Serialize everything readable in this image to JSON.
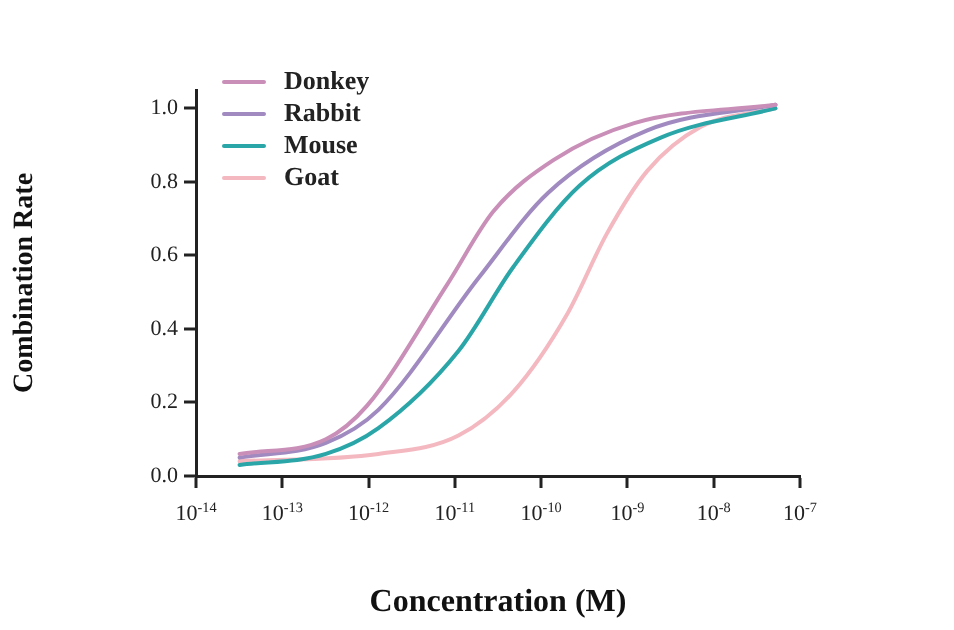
{
  "chart_data": {
    "type": "line",
    "xlabel": "Concentration (M)",
    "ylabel": "Combination Rate",
    "log": "x",
    "xlim": [
      1e-14,
      1e-07
    ],
    "xticks": [
      {
        "value": 1e-14,
        "label": "10$^{-14}$"
      },
      {
        "value": 1e-13,
        "label": "10$^{-13}$"
      },
      {
        "value": 1e-12,
        "label": "10$^{-12}$"
      },
      {
        "value": 1e-11,
        "label": "10$^{-11}$"
      },
      {
        "value": 1e-10,
        "label": "10$^{-10}$"
      },
      {
        "value": 1e-09,
        "label": "10$^{-9}$"
      },
      {
        "value": 1e-08,
        "label": "10$^{-8}$"
      },
      {
        "value": 1e-07,
        "label": "10$^{-7}$"
      }
    ],
    "ylim": [
      0,
      1.05
    ],
    "yticks": [
      {
        "value": 0,
        "label": "0.0"
      },
      {
        "value": 0.2,
        "label": "0.2"
      },
      {
        "value": 0.4,
        "label": "0.4"
      },
      {
        "value": 0.6,
        "label": "0.6"
      },
      {
        "value": 0.8,
        "label": "0.8"
      },
      {
        "value": 1,
        "label": "1.0"
      }
    ],
    "grid": false,
    "legend": "top left",
    "marker": "none",
    "line_style": "solid",
    "series": [
      {
        "name": "Donkey",
        "color": "#c98fb8",
        "x": [
          3.2e-14,
          3.2e-13,
          9.5e-13,
          8.1e-12,
          2.8e-11,
          1.4e-10,
          1.2e-09,
          5.2e-08
        ],
        "values": [
          0.06,
          0.1,
          0.19,
          0.52,
          0.72,
          0.86,
          0.96,
          1.01
        ]
      },
      {
        "name": "Rabbit",
        "color": "#a08ac0",
        "x": [
          3.2e-14,
          3.2e-13,
          1.3e-12,
          1.9e-11,
          1.2e-10,
          1.7e-09,
          5.2e-08
        ],
        "values": [
          0.05,
          0.09,
          0.18,
          0.54,
          0.77,
          0.94,
          1.01
        ]
      },
      {
        "name": "Mouse",
        "color": "#2aa6a8",
        "x": [
          3.2e-14,
          3.2e-13,
          1.3e-12,
          1.1e-11,
          4.8e-11,
          2.8e-10,
          2.4e-09,
          5.2e-08
        ],
        "values": [
          0.03,
          0.06,
          0.13,
          0.34,
          0.57,
          0.79,
          0.92,
          1.0
        ]
      },
      {
        "name": "Goat",
        "color": "#f4b8c0",
        "x": [
          3.2e-14,
          1.3e-12,
          1.1e-11,
          4.8e-11,
          2e-10,
          5.8e-10,
          1.7e-09,
          7.1e-09,
          5.2e-08
        ],
        "values": [
          0.04,
          0.06,
          0.11,
          0.23,
          0.44,
          0.66,
          0.83,
          0.95,
          1.0
        ]
      }
    ]
  }
}
